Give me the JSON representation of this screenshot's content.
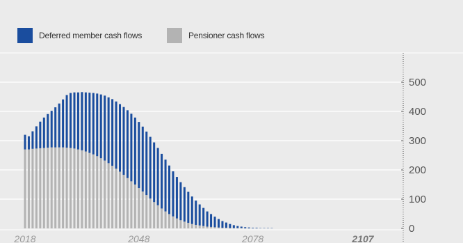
{
  "chart_data": {
    "type": "bar",
    "stacked": true,
    "legend_position": "top-left",
    "grid": true,
    "x_start": 2018,
    "x_end": 2107,
    "xticks": [
      "2018",
      "2048",
      "2078",
      "2107"
    ],
    "yticks": [
      0,
      100,
      200,
      300,
      400,
      500
    ],
    "ylim": [
      0,
      560
    ],
    "series": [
      {
        "name": "Pensioner cash flows",
        "color": "#b3b3b3",
        "values": [
          270,
          270,
          272,
          273,
          274,
          275,
          276,
          277,
          277,
          277,
          277,
          276,
          275,
          273,
          270,
          267,
          263,
          258,
          253,
          247,
          240,
          232,
          223,
          214,
          204,
          194,
          183,
          172,
          161,
          150,
          138,
          126,
          114,
          102,
          90,
          79,
          68,
          58,
          49,
          41,
          34,
          28,
          23,
          19,
          15,
          12,
          10,
          8,
          6,
          5,
          4,
          3,
          2,
          2,
          1,
          1,
          1,
          1,
          0,
          0,
          0,
          0,
          0,
          0,
          0,
          0,
          0,
          0,
          0,
          0,
          0,
          0,
          0,
          0,
          0,
          0,
          0,
          0,
          0,
          0,
          0,
          0,
          0,
          0,
          0,
          0,
          0,
          0,
          0,
          0
        ]
      },
      {
        "name": "Deferred member cash flows",
        "color": "#1a4d9e",
        "values": [
          50,
          45,
          60,
          76,
          91,
          104,
          115,
          125,
          137,
          150,
          164,
          180,
          188,
          192,
          195,
          199,
          202,
          206,
          210,
          214,
          218,
          222,
          225,
          228,
          230,
          231,
          232,
          232,
          231,
          229,
          226,
          222,
          217,
          211,
          204,
          196,
          187,
          177,
          166,
          154,
          142,
          130,
          118,
          106,
          94,
          83,
          72,
          62,
          52,
          44,
          36,
          29,
          23,
          18,
          14,
          10,
          7,
          5,
          4,
          3,
          2,
          2,
          1,
          1,
          1,
          1,
          0,
          0,
          0,
          0,
          0,
          0,
          0,
          0,
          0,
          0,
          0,
          0,
          0,
          0,
          0,
          0,
          0,
          0,
          0,
          0,
          0,
          0,
          0,
          0
        ]
      }
    ]
  }
}
